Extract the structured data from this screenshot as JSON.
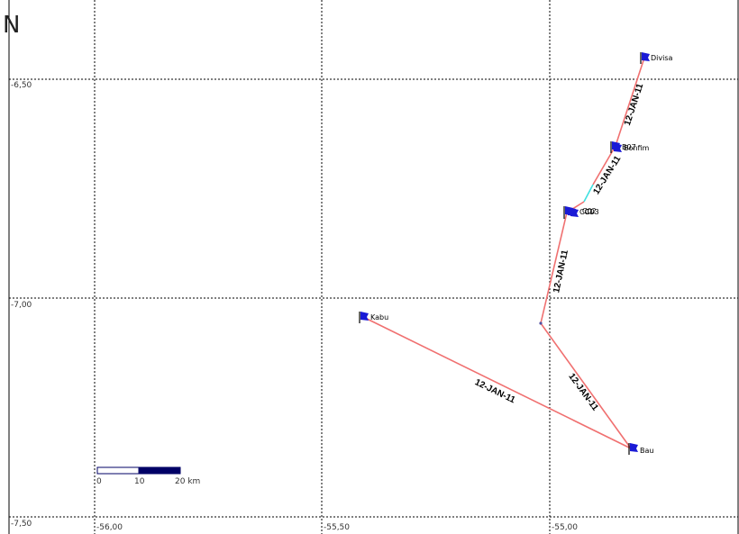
{
  "north_arrow": "N",
  "axes": {
    "lon_ticks": [
      "-56,00",
      "-55,50",
      "-55,00"
    ],
    "lat_ticks": [
      "-6,50",
      "-7,00",
      "-7,50"
    ]
  },
  "places": [
    {
      "id": "divisa",
      "name": "Divisa",
      "lon": -54.795,
      "lat": -6.453
    },
    {
      "id": "bonfim",
      "name": "Bonfim",
      "lon": -54.85,
      "lat": -6.65
    },
    {
      "id": "c02",
      "name": "C02",
      "lon": -54.965,
      "lat": -6.805
    },
    {
      "id": "kabu",
      "name": "Kabu",
      "lon": -55.505,
      "lat": -7.04
    },
    {
      "id": "bau",
      "name": "Bau",
      "lon": -54.81,
      "lat": -7.345
    }
  ],
  "overlap_labels": [
    "B07",
    "C01",
    "C03"
  ],
  "track": {
    "date_label": "12-JAN-11",
    "segments": [
      {
        "from": "divisa",
        "to": "bonfim",
        "label": "12-JAN-11"
      },
      {
        "from": "bonfim",
        "to": "c02",
        "label": "12-JAN-11"
      },
      {
        "from": "c02",
        "to": "bend",
        "label": "12-JAN-11"
      },
      {
        "from": "bend",
        "to": "bau",
        "label": "12-JAN-11"
      },
      {
        "from": "kabu",
        "to": "bau",
        "label": "12-JAN-11"
      }
    ]
  },
  "scale_bar": {
    "labels": [
      "0",
      "10",
      "20 km"
    ]
  },
  "colors": {
    "track": "#f07070",
    "track_highlight": "#40e0e0",
    "flag": "#1a1ad6",
    "grid": "#000000"
  }
}
